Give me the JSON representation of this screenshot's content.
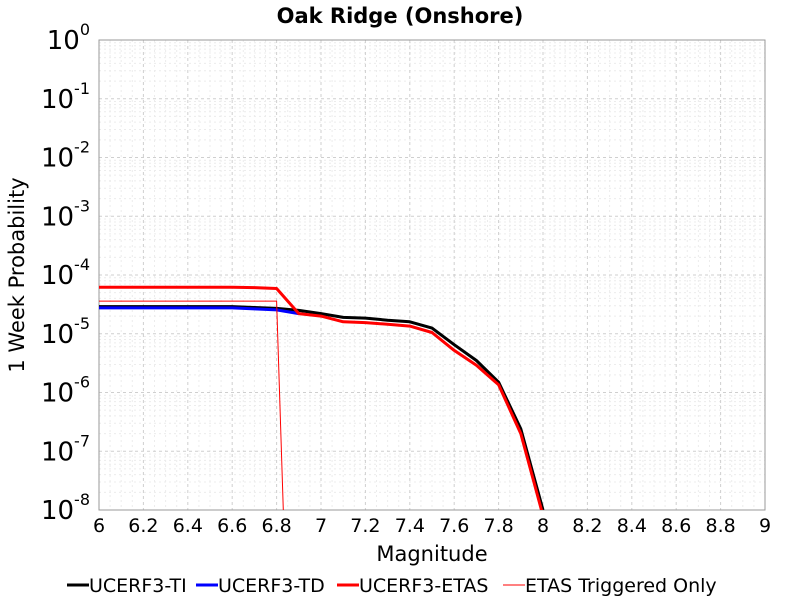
{
  "chart_data": {
    "type": "line",
    "title": "Oak Ridge (Onshore)",
    "xlabel": "Magnitude",
    "ylabel": "1 Week Probability",
    "xlim": [
      6,
      9
    ],
    "ylim": [
      1e-08,
      1
    ],
    "yscale": "log",
    "grid": true,
    "legend_position": "bottom",
    "x_ticks": [
      "6",
      "6.2",
      "6.4",
      "6.6",
      "6.8",
      "7",
      "7.2",
      "7.4",
      "7.6",
      "7.8",
      "8",
      "8.2",
      "8.4",
      "8.6",
      "8.8",
      "9"
    ],
    "y_tick_base": "10",
    "y_tick_exponents": [
      "0",
      "-1",
      "-2",
      "-3",
      "-4",
      "-5",
      "-6",
      "-7",
      "-8"
    ],
    "series": [
      {
        "name": "UCERF3-TI",
        "color": "#000000",
        "width": 3,
        "x": [
          6.0,
          6.1,
          6.2,
          6.3,
          6.4,
          6.5,
          6.6,
          6.7,
          6.8,
          6.9,
          7.0,
          7.1,
          7.2,
          7.3,
          7.4,
          7.5,
          7.6,
          7.7,
          7.8,
          7.9,
          8.0
        ],
        "y": [
          2.9e-05,
          2.9e-05,
          2.9e-05,
          2.9e-05,
          2.9e-05,
          2.9e-05,
          2.9e-05,
          2.8e-05,
          2.7e-05,
          2.5e-05,
          2.2e-05,
          1.9e-05,
          1.85e-05,
          1.7e-05,
          1.6e-05,
          1.25e-05,
          6.5e-06,
          3.5e-06,
          1.5e-06,
          2.4e-07,
          1e-08
        ]
      },
      {
        "name": "UCERF3-TD",
        "color": "#0000ff",
        "width": 3,
        "x": [
          6.0,
          6.1,
          6.2,
          6.3,
          6.4,
          6.5,
          6.6,
          6.7,
          6.8,
          6.9
        ],
        "y": [
          2.75e-05,
          2.75e-05,
          2.75e-05,
          2.75e-05,
          2.75e-05,
          2.75e-05,
          2.75e-05,
          2.65e-05,
          2.55e-05,
          2.2e-05
        ]
      },
      {
        "name": "UCERF3-ETAS",
        "color": "#ff0000",
        "width": 3,
        "x": [
          6.0,
          6.1,
          6.2,
          6.3,
          6.4,
          6.5,
          6.6,
          6.7,
          6.8,
          6.9,
          7.0,
          7.1,
          7.2,
          7.3,
          7.4,
          7.5,
          7.6,
          7.7,
          7.8,
          7.9,
          8.0
        ],
        "y": [
          6.2e-05,
          6.2e-05,
          6.2e-05,
          6.2e-05,
          6.2e-05,
          6.2e-05,
          6.2e-05,
          6.1e-05,
          5.9e-05,
          2.2e-05,
          2e-05,
          1.6e-05,
          1.55e-05,
          1.45e-05,
          1.35e-05,
          1.05e-05,
          5.2e-06,
          2.9e-06,
          1.35e-06,
          2e-07,
          8e-09
        ]
      },
      {
        "name": "ETAS Triggered Only",
        "color": "#ff0000",
        "width": 1,
        "x": [
          6.0,
          6.1,
          6.2,
          6.3,
          6.4,
          6.5,
          6.6,
          6.7,
          6.8,
          6.83
        ],
        "y": [
          3.6e-05,
          3.6e-05,
          3.6e-05,
          3.6e-05,
          3.6e-05,
          3.6e-05,
          3.6e-05,
          3.6e-05,
          3.6e-05,
          1e-08
        ]
      }
    ]
  }
}
